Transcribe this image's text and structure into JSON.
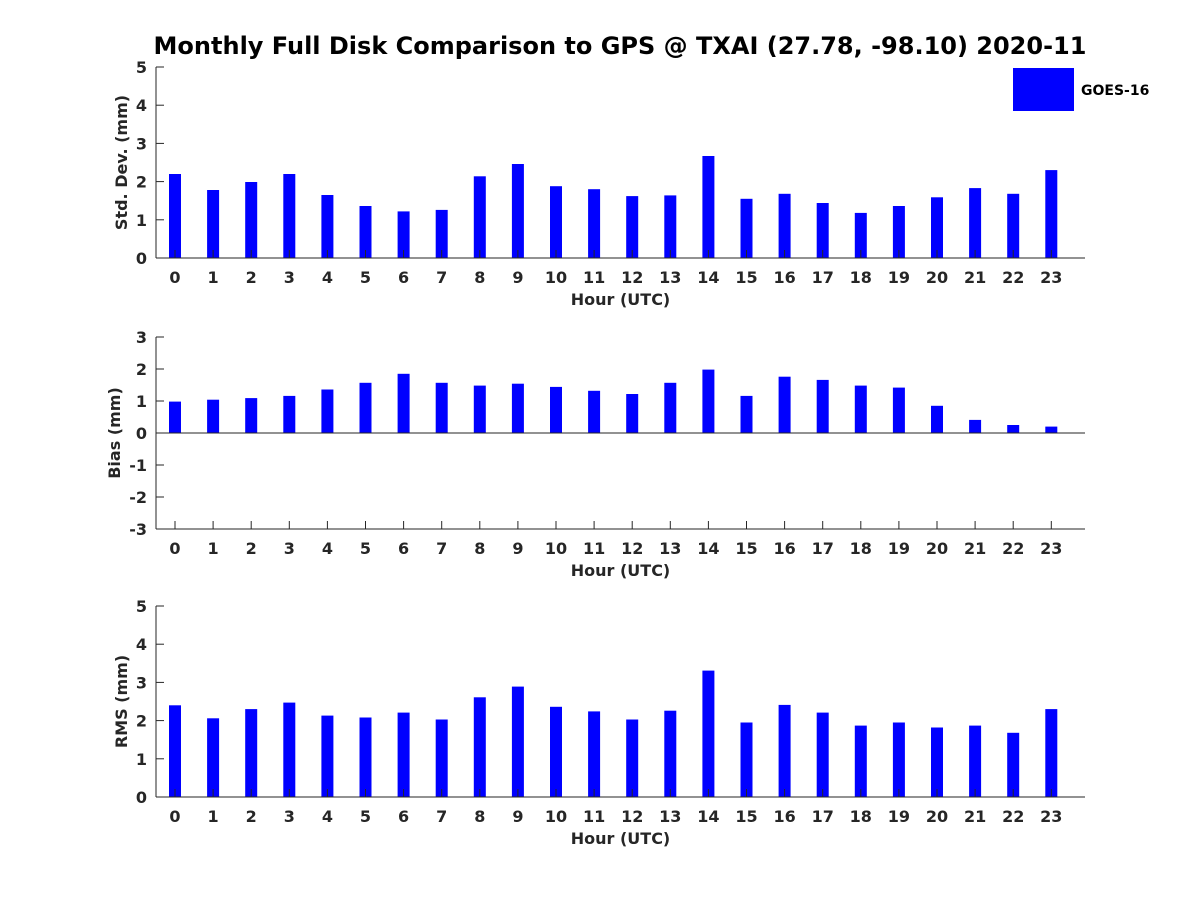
{
  "title": "Monthly Full Disk Comparison to GPS @ TXAI (27.78, -98.10) 2020-11",
  "legend": {
    "label": "GOES-16",
    "color": "#0000ff",
    "position": "top-right"
  },
  "chart_data": [
    {
      "type": "bar",
      "ylabel": "Std. Dev. (mm)",
      "xlabel": "Hour (UTC)",
      "ylim": [
        0,
        5
      ],
      "yticks": [
        "0",
        "1",
        "2",
        "3",
        "4",
        "5"
      ],
      "categories": [
        "0",
        "1",
        "2",
        "3",
        "4",
        "5",
        "6",
        "7",
        "8",
        "9",
        "10",
        "11",
        "12",
        "13",
        "14",
        "15",
        "16",
        "17",
        "18",
        "19",
        "20",
        "21",
        "22",
        "23"
      ],
      "series": [
        {
          "name": "GOES-16",
          "color": "#0000ff",
          "values": [
            2.2,
            1.78,
            1.99,
            2.2,
            1.65,
            1.36,
            1.22,
            1.26,
            2.14,
            2.46,
            1.88,
            1.8,
            1.62,
            1.64,
            2.67,
            1.55,
            1.68,
            1.44,
            1.18,
            1.36,
            1.59,
            1.83,
            1.68,
            2.3
          ]
        }
      ]
    },
    {
      "type": "bar",
      "ylabel": "Bias (mm)",
      "xlabel": "Hour (UTC)",
      "ylim": [
        -3,
        3
      ],
      "yticks": [
        "-3",
        "-2",
        "-1",
        "0",
        "1",
        "2",
        "3"
      ],
      "categories": [
        "0",
        "1",
        "2",
        "3",
        "4",
        "5",
        "6",
        "7",
        "8",
        "9",
        "10",
        "11",
        "12",
        "13",
        "14",
        "15",
        "16",
        "17",
        "18",
        "19",
        "20",
        "21",
        "22",
        "23"
      ],
      "series": [
        {
          "name": "GOES-16",
          "color": "#0000ff",
          "values": [
            0.98,
            1.04,
            1.09,
            1.16,
            1.36,
            1.57,
            1.85,
            1.57,
            1.48,
            1.54,
            1.44,
            1.32,
            1.22,
            1.57,
            1.98,
            1.16,
            1.76,
            1.66,
            1.48,
            1.42,
            0.85,
            0.41,
            0.25,
            0.2
          ]
        }
      ]
    },
    {
      "type": "bar",
      "ylabel": "RMS (mm)",
      "xlabel": "Hour (UTC)",
      "ylim": [
        0,
        5
      ],
      "yticks": [
        "0",
        "1",
        "2",
        "3",
        "4",
        "5"
      ],
      "categories": [
        "0",
        "1",
        "2",
        "3",
        "4",
        "5",
        "6",
        "7",
        "8",
        "9",
        "10",
        "11",
        "12",
        "13",
        "14",
        "15",
        "16",
        "17",
        "18",
        "19",
        "20",
        "21",
        "22",
        "23"
      ],
      "series": [
        {
          "name": "GOES-16",
          "color": "#0000ff",
          "values": [
            2.4,
            2.06,
            2.3,
            2.47,
            2.13,
            2.08,
            2.21,
            2.03,
            2.61,
            2.89,
            2.36,
            2.24,
            2.03,
            2.26,
            3.31,
            1.95,
            2.41,
            2.21,
            1.87,
            1.95,
            1.82,
            1.87,
            1.68,
            2.3
          ]
        }
      ]
    }
  ]
}
